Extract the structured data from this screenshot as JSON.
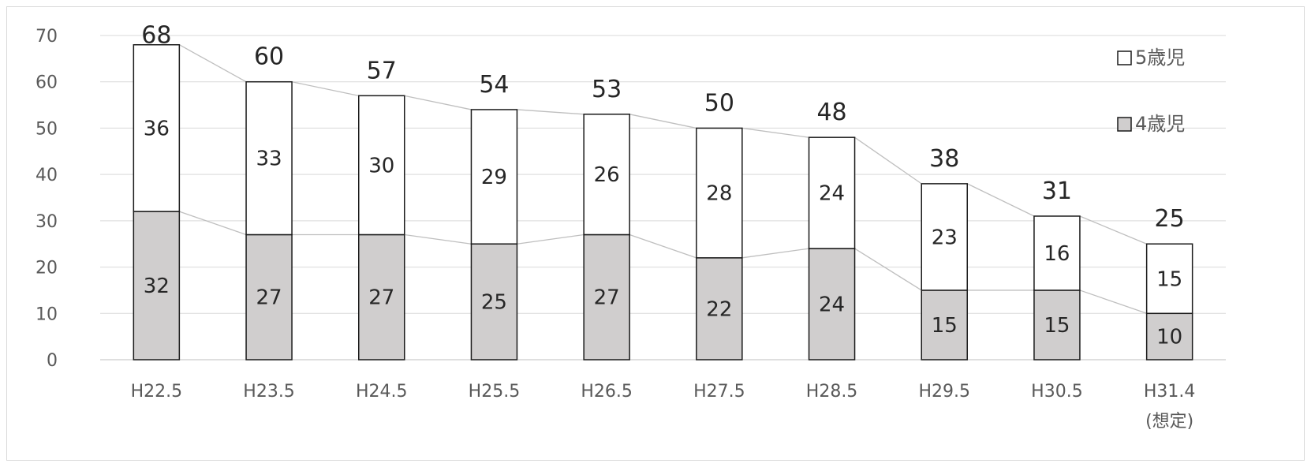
{
  "chart_data": {
    "type": "bar",
    "stacked": true,
    "categories": [
      "H22.5",
      "H23.5",
      "H24.5",
      "H25.5",
      "H26.5",
      "H27.5",
      "H28.5",
      "H29.5",
      "H30.5",
      "H31.4"
    ],
    "category_notes": [
      "",
      "",
      "",
      "",
      "",
      "",
      "",
      "",
      "",
      "(想定)"
    ],
    "series": [
      {
        "name": "4歳児",
        "values": [
          32,
          27,
          27,
          25,
          27,
          22,
          24,
          15,
          15,
          10
        ],
        "color": "#d0cece"
      },
      {
        "name": "5歳児",
        "values": [
          36,
          33,
          30,
          29,
          26,
          28,
          24,
          23,
          16,
          15
        ],
        "color": "#ffffff"
      }
    ],
    "totals": [
      68,
      60,
      57,
      54,
      53,
      50,
      48,
      38,
      31,
      25
    ],
    "yticks": [
      0,
      10,
      20,
      30,
      40,
      50,
      60,
      70
    ],
    "ylim": [
      0,
      70
    ],
    "title": "",
    "xlabel": "",
    "ylabel": "",
    "grid": true,
    "legend_position": "right",
    "series_lines": true
  }
}
